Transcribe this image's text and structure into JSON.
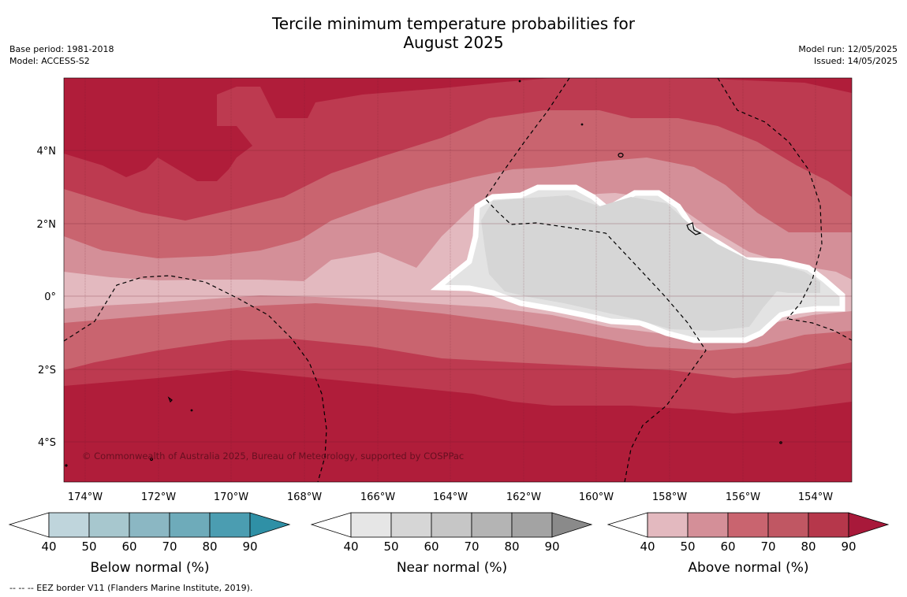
{
  "title_line1": "Tercile minimum temperature probabilities for",
  "title_line2": "August 2025",
  "meta_left": [
    "Base period: 1981-2018",
    "Model: ACCESS-S2"
  ],
  "meta_right": [
    "Model run: 12/05/2025",
    "Issued: 14/05/2025"
  ],
  "map": {
    "lon_labels": [
      "174°W",
      "172°W",
      "170°W",
      "168°W",
      "166°W",
      "164°W",
      "162°W",
      "160°W",
      "158°W",
      "156°W",
      "154°W"
    ],
    "lat_labels": [
      "4°N",
      "2°N",
      "0°",
      "2°S",
      "4°S"
    ],
    "copyright": "© Commonwealth of Australia 2025, Bureau of Meteorology, supported by COSPPac",
    "zone_colors": {
      "above_80_90": "#b01d3a",
      "above_70_80": "#bd3a50",
      "above_60_70": "#c9646f",
      "above_50_60": "#d48f98",
      "above_40_50": "#e3b9bf",
      "near_60_70": "#d6d6d6",
      "near_50_60": "#e3e3e3"
    }
  },
  "colorbars": [
    {
      "title": "Below normal (%)",
      "ticks": [
        "40",
        "50",
        "60",
        "70",
        "80",
        "90"
      ],
      "colors": [
        "#bfd5dc",
        "#a7c7ce",
        "#8bb7c3",
        "#6eabba",
        "#4b9db1",
        "#2f90a6"
      ]
    },
    {
      "title": "Near normal (%)",
      "ticks": [
        "40",
        "50",
        "60",
        "70",
        "80",
        "90"
      ],
      "colors": [
        "#e6e6e6",
        "#d6d6d6",
        "#c6c6c6",
        "#b4b4b4",
        "#a3a3a3",
        "#8a8a8a"
      ]
    },
    {
      "title": "Above normal (%)",
      "ticks": [
        "40",
        "50",
        "60",
        "70",
        "80",
        "90"
      ],
      "colors": [
        "#e3b9bf",
        "#d48f98",
        "#c9646f",
        "#c05763",
        "#b6374b",
        "#a8193a"
      ]
    }
  ],
  "footer": "-- -- -- EEZ border V11 (Flanders Marine Institute, 2019)."
}
